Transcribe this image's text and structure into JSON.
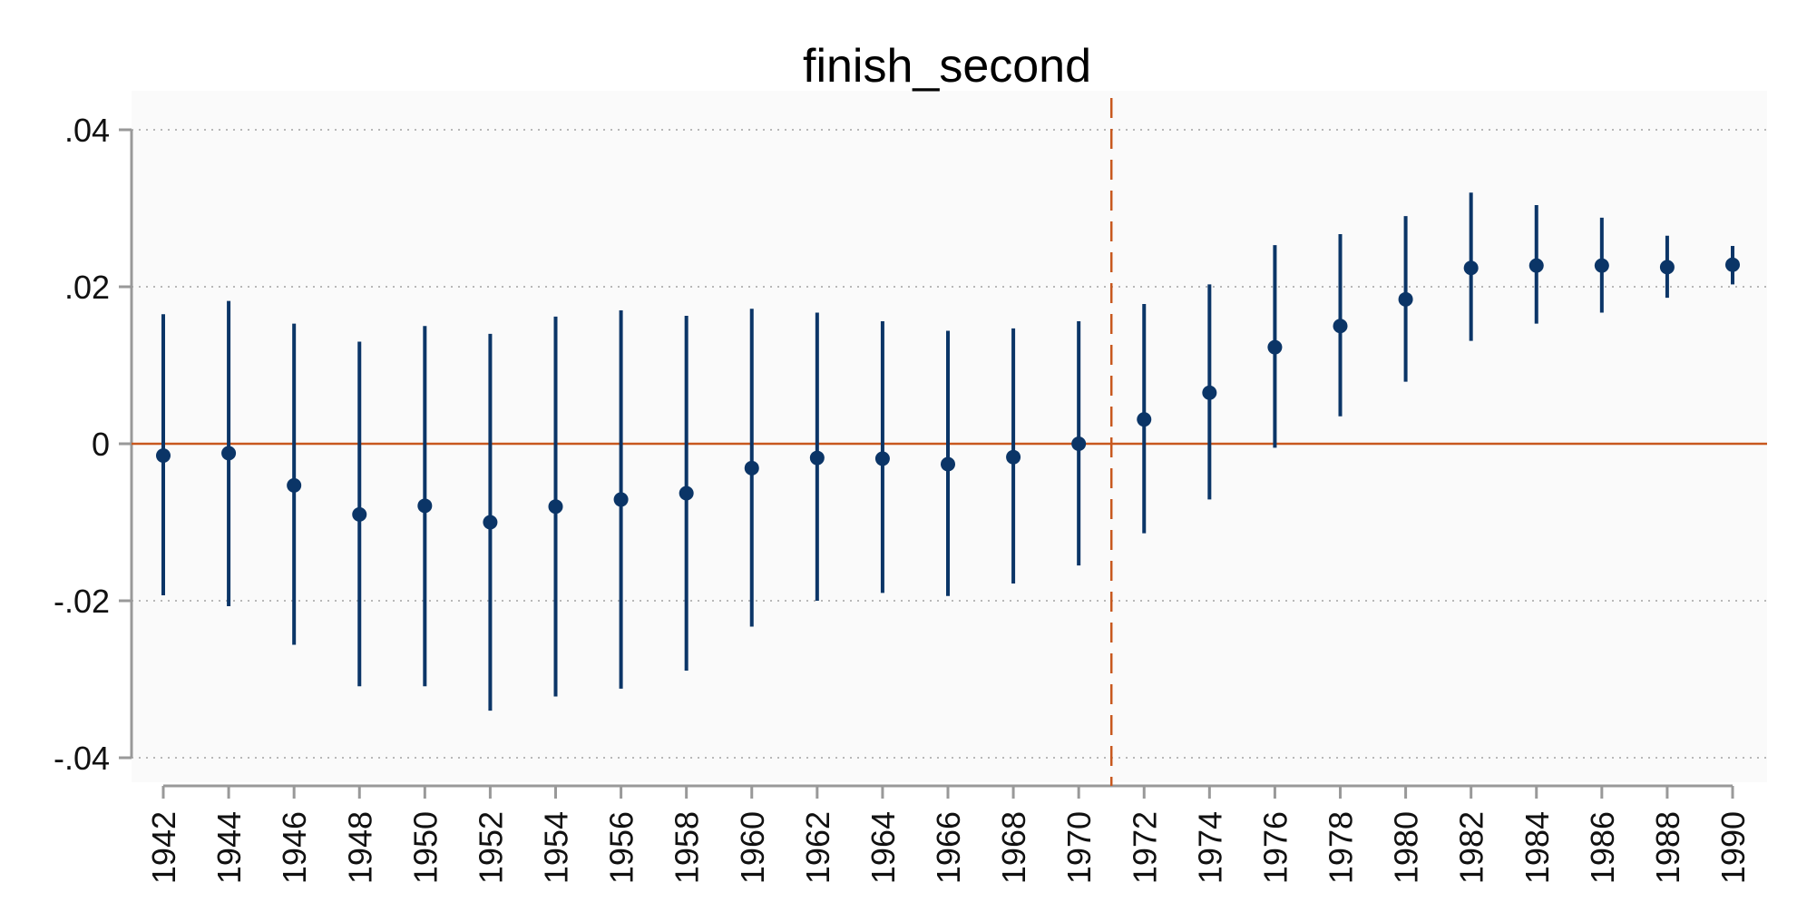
{
  "chart_data": {
    "type": "scatter",
    "subtype": "coefficient-plot-with-confidence-intervals",
    "title": "finish_second",
    "xlabel": "",
    "ylabel": "",
    "x": [
      1942,
      1944,
      1946,
      1948,
      1950,
      1952,
      1954,
      1956,
      1958,
      1960,
      1962,
      1964,
      1966,
      1968,
      1970,
      1972,
      1974,
      1976,
      1978,
      1980,
      1982,
      1984,
      1986,
      1988,
      1990
    ],
    "estimate": [
      -0.0015,
      -0.0012,
      -0.0053,
      -0.009,
      -0.0079,
      -0.01,
      -0.008,
      -0.0071,
      -0.0063,
      -0.0031,
      -0.0018,
      -0.0019,
      -0.0026,
      -0.0017,
      0.0,
      0.0031,
      0.0065,
      0.0123,
      0.015,
      0.0184,
      0.0224,
      0.0227,
      0.0227,
      0.0225,
      0.0228
    ],
    "ci_lower": [
      -0.0193,
      -0.0207,
      -0.0256,
      -0.0309,
      -0.0309,
      -0.034,
      -0.0322,
      -0.0312,
      -0.0289,
      -0.0233,
      -0.02,
      -0.019,
      -0.0194,
      -0.0178,
      -0.0155,
      -0.0114,
      -0.0071,
      -0.0005,
      0.0035,
      0.0079,
      0.0131,
      0.0153,
      0.0167,
      0.0186,
      0.0203
    ],
    "ci_upper": [
      0.0165,
      0.0182,
      0.0153,
      0.013,
      0.015,
      0.014,
      0.0162,
      0.017,
      0.0163,
      0.0172,
      0.0167,
      0.0156,
      0.0144,
      0.0147,
      0.0156,
      0.0178,
      0.0203,
      0.0253,
      0.0267,
      0.029,
      0.032,
      0.0304,
      0.0288,
      0.0265,
      0.0252
    ],
    "ylim": [
      -0.04,
      0.04
    ],
    "yticks": [
      -0.04,
      -0.02,
      0,
      0.02,
      0.04
    ],
    "ytick_labels": [
      "-.04",
      "-.02",
      "0",
      ".02",
      ".04"
    ],
    "xticks": [
      1942,
      1944,
      1946,
      1948,
      1950,
      1952,
      1954,
      1956,
      1958,
      1960,
      1962,
      1964,
      1966,
      1968,
      1970,
      1972,
      1974,
      1976,
      1978,
      1980,
      1982,
      1984,
      1986,
      1988,
      1990
    ],
    "xtick_labels": [
      "1942",
      "1944",
      "1946",
      "1948",
      "1950",
      "1952",
      "1954",
      "1956",
      "1958",
      "1960",
      "1962",
      "1964",
      "1966",
      "1968",
      "1970",
      "1972",
      "1974",
      "1976",
      "1978",
      "1980",
      "1982",
      "1984",
      "1986",
      "1988",
      "1990"
    ],
    "reference_hline": 0,
    "reference_vline": 1971,
    "grid": "horizontal-dotted",
    "legend": "none",
    "colors": {
      "marker": "#0b3567",
      "ci": "#0b3567",
      "reference": "#c8581e",
      "grid": "#b8b8b8",
      "axis": "#999999",
      "plot_bg": "#fafafa"
    }
  }
}
